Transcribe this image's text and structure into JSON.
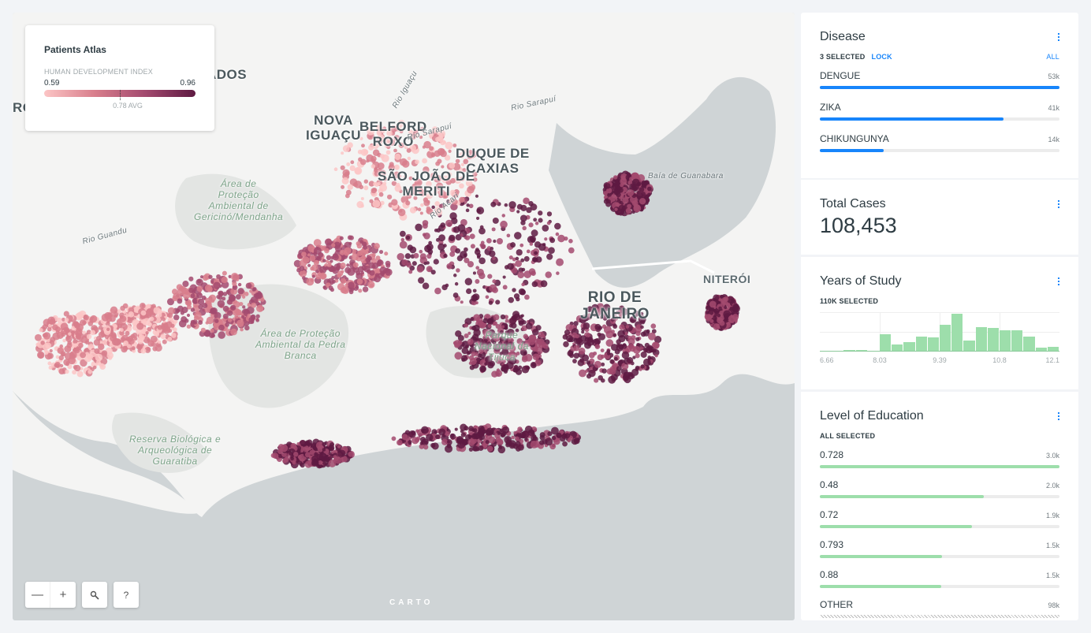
{
  "map": {
    "legend": {
      "title": "Patients Atlas",
      "subtitle": "HUMAN DEVELOPMENT INDEX",
      "min": "0.59",
      "max": "0.96",
      "avg": "0.78 AVG",
      "ramp": [
        "#fcc5c5",
        "#d87e8c",
        "#a34a6f",
        "#5e1a42"
      ]
    },
    "labels": {
      "nova_iguacu": "NOVA\nIGUAÇU",
      "belford_roxo": "BELFORD\nROXO",
      "sao_joao": "SÃO JOÃO DE\nMERITI",
      "duque": "DUQUE DE\nCAXIAS",
      "rio": "RIO DE\nJANEIRO",
      "niteroi": "NITERÓI",
      "ados": "ADOS",
      "ro": "RO",
      "gericino": "Área de\nProteção\nAmbiental de\nGericinó/Mendanha",
      "pedra": "Área de Proteção\nAmbiental da Pedra\nBranca",
      "tijuca": "Parque\nNacional da\nTijuca",
      "guaratiba": "Reserva Biológica e\nArqueológica de\nGuaratiba",
      "baia": "Baía de Guanabara",
      "rio_guandu": "Rio Guandu",
      "rio_sarapui": "Rio Sarapuí",
      "rio_sarapui2": "Rio Sarapuí",
      "rio_iguacu": "Rio Iguaçu",
      "rio_acari": "Rio Acari"
    },
    "controls": {
      "zoom_out": "—",
      "zoom_in": "+",
      "search_icon": "search-icon",
      "help": "?"
    },
    "attribution": "CARTO"
  },
  "widgets": {
    "disease": {
      "title": "Disease",
      "selected": "3 SELECTED",
      "lock": "LOCK",
      "all": "ALL",
      "accent": "#1785fb",
      "items": [
        {
          "name": "DENGUE",
          "value": "53k",
          "fraction": 1.0
        },
        {
          "name": "ZIKA",
          "value": "41k",
          "fraction": 0.767
        },
        {
          "name": "CHIKUNGUNYA",
          "value": "14k",
          "fraction": 0.266
        }
      ]
    },
    "total": {
      "title": "Total Cases",
      "value": "108,453"
    },
    "years": {
      "title": "Years of Study",
      "selected": "110K SELECTED",
      "color": "#9ddeab",
      "ticks": [
        "6.66",
        "8.03",
        "9.39",
        "10.8",
        "12.1"
      ],
      "bins_relative": [
        2,
        2,
        4,
        4,
        2,
        45,
        18,
        24,
        39,
        37,
        70,
        100,
        30,
        64,
        62,
        56,
        56,
        39,
        11,
        13
      ]
    },
    "education": {
      "title": "Level of Education",
      "selected": "ALL SELECTED",
      "color": "#9ddeab",
      "items": [
        {
          "name": "0.728",
          "value": "3.0k",
          "fraction": 1.0
        },
        {
          "name": "0.48",
          "value": "2.0k",
          "fraction": 0.685
        },
        {
          "name": "0.72",
          "value": "1.9k",
          "fraction": 0.635
        },
        {
          "name": "0.793",
          "value": "1.5k",
          "fraction": 0.51
        },
        {
          "name": "0.88",
          "value": "1.5k",
          "fraction": 0.507
        },
        {
          "name": "OTHER",
          "value": "98k",
          "fraction": 1.0,
          "hatched": true
        }
      ]
    }
  }
}
